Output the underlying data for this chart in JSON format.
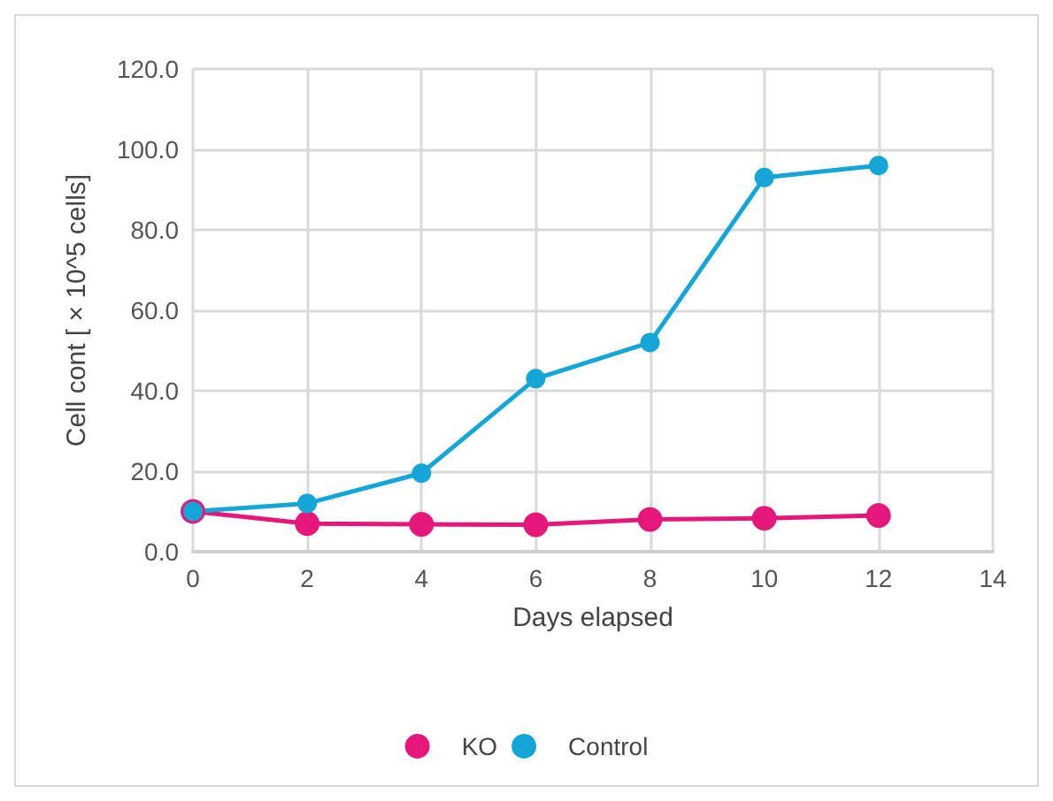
{
  "chart_data": {
    "type": "line",
    "xlabel": "Days elapsed",
    "ylabel": "Cell cont [ × 10^5 cells]",
    "x": [
      0,
      2,
      4,
      6,
      8,
      10,
      12
    ],
    "series": [
      {
        "name": "KO",
        "color": "#e5177b",
        "values": [
          10,
          7,
          6.8,
          6.7,
          8,
          8.3,
          9
        ]
      },
      {
        "name": "Control",
        "color": "#14a6d6",
        "values": [
          10,
          12,
          19.5,
          43,
          52,
          93,
          96
        ]
      }
    ],
    "xlim": [
      0,
      14
    ],
    "xticks": [
      0,
      2,
      4,
      6,
      8,
      10,
      12,
      14
    ],
    "ylim": [
      0,
      120
    ],
    "yticks": [
      {
        "value": 0,
        "label": "0.0"
      },
      {
        "value": 20,
        "label": "20.0"
      },
      {
        "value": 40,
        "label": "40.0"
      },
      {
        "value": 60,
        "label": "60.0"
      },
      {
        "value": 80,
        "label": "80.0"
      },
      {
        "value": 100,
        "label": "100.0"
      },
      {
        "value": 120,
        "label": "120.0"
      }
    ],
    "grid": true,
    "legend": "bottom",
    "marker": "circle",
    "line_style": "solid"
  }
}
